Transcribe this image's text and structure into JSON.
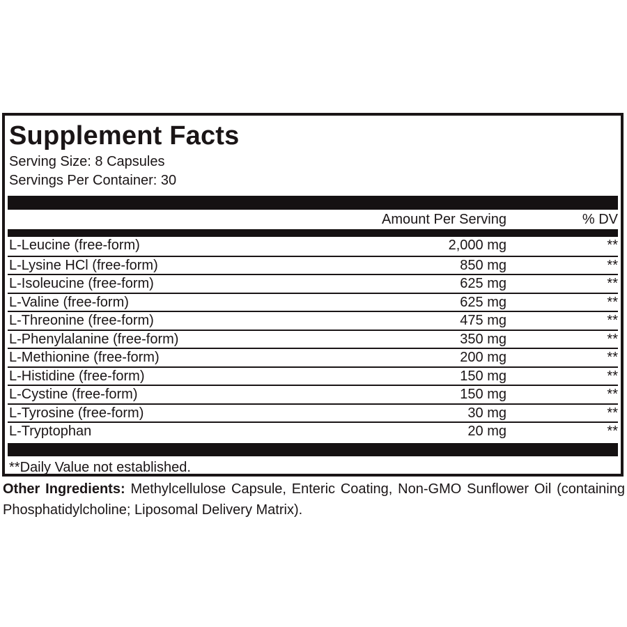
{
  "colors": {
    "ink": "#1a1516",
    "bar": "#151112",
    "background": "#ffffff"
  },
  "panel": {
    "title": "Supplement Facts",
    "serving_size": "Serving Size: 8 Capsules",
    "servings_per_container": "Servings Per Container: 30",
    "header": {
      "amount": "Amount Per Serving",
      "dv": "% DV"
    },
    "rows": [
      {
        "name": "L-Leucine (free-form)",
        "amount": "2,000 mg",
        "dv": "**"
      },
      {
        "name": "L-Lysine HCl (free-form)",
        "amount": "850 mg",
        "dv": "**"
      },
      {
        "name": "L-Isoleucine (free-form)",
        "amount": "625 mg",
        "dv": "**"
      },
      {
        "name": "L-Valine (free-form)",
        "amount": "625 mg",
        "dv": "**"
      },
      {
        "name": "L-Threonine (free-form)",
        "amount": "475 mg",
        "dv": "**"
      },
      {
        "name": "L-Phenylalanine (free-form)",
        "amount": "350 mg",
        "dv": "**"
      },
      {
        "name": "L-Methionine (free-form)",
        "amount": "200 mg",
        "dv": "**"
      },
      {
        "name": "L-Histidine (free-form)",
        "amount": "150 mg",
        "dv": "**"
      },
      {
        "name": "L-Cystine (free-form)",
        "amount": "150 mg",
        "dv": "**"
      },
      {
        "name": "L-Tyrosine (free-form)",
        "amount": "30 mg",
        "dv": "**"
      },
      {
        "name": "L-Tryptophan",
        "amount": "20 mg",
        "dv": "**"
      }
    ],
    "footnote": "**Daily Value not established."
  },
  "other_ingredients": {
    "label": "Other Ingredients:",
    "text": "Methylcellulose Capsule, Enteric Coating, Non-GMO Sunflower Oil (containing Phosphatidylcholine; Liposomal Delivery Matrix)."
  }
}
